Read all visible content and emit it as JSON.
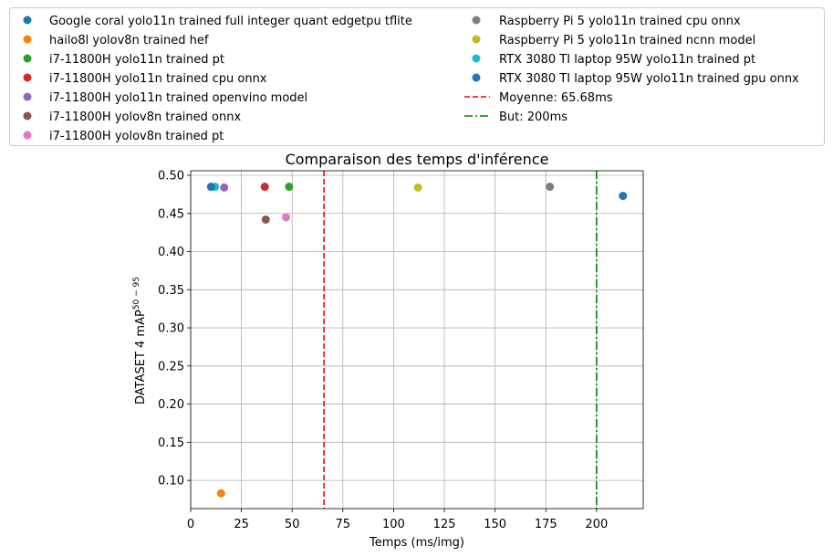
{
  "chart_data": {
    "type": "scatter",
    "title": "Comparaison des temps d'inférence",
    "xlabel": "Temps (ms/img)",
    "ylabel_main": "DATASET 4 mAP",
    "ylabel_sup": "50 − 95",
    "xlim": [
      0,
      223
    ],
    "ylim": [
      0.063,
      0.506
    ],
    "xticks": [
      0,
      25,
      50,
      75,
      100,
      125,
      150,
      175,
      200
    ],
    "yticks": [
      0.1,
      0.15,
      0.2,
      0.25,
      0.3,
      0.35,
      0.4,
      0.45,
      0.5
    ],
    "grid": true,
    "legend_position": "top",
    "series": [
      {
        "name": "Google coral yolo11n trained full integer quant edgetpu tflite",
        "color": "#1f77b4",
        "x": 213.0,
        "y": 0.473
      },
      {
        "name": "hailo8l yolov8n trained hef",
        "color": "#ff7f0e",
        "x": 15.0,
        "y": 0.083
      },
      {
        "name": "i7-11800H yolo11n trained pt",
        "color": "#2ca02c",
        "x": 48.5,
        "y": 0.485
      },
      {
        "name": "i7-11800H yolo11n trained cpu onnx",
        "color": "#d62728",
        "x": 36.5,
        "y": 0.485
      },
      {
        "name": "i7-11800H yolo11n trained openvino model",
        "color": "#9467bd",
        "x": 16.5,
        "y": 0.484
      },
      {
        "name": "i7-11800H yolov8n trained onnx",
        "color": "#8c564b",
        "x": 37.0,
        "y": 0.442
      },
      {
        "name": "i7-11800H yolov8n trained pt",
        "color": "#e377c2",
        "x": 47.0,
        "y": 0.445
      },
      {
        "name": "Raspberry Pi 5 yolo11n trained cpu onnx",
        "color": "#7f7f7f",
        "x": 177.0,
        "y": 0.485
      },
      {
        "name": "Raspberry Pi 5 yolo11n trained ncnn model",
        "color": "#bcbd22",
        "x": 112.0,
        "y": 0.484
      },
      {
        "name": "RTX 3080 TI laptop 95W yolo11n trained pt",
        "color": "#17becf",
        "x": 12.0,
        "y": 0.485
      },
      {
        "name": "RTX 3080 TI laptop 95W yolo11n trained gpu onnx",
        "color": "#1f77b4",
        "x": 10.0,
        "y": 0.485
      }
    ],
    "reference_lines": [
      {
        "label": "Moyenne: 65.68ms",
        "x": 65.68,
        "color": "#ff0000",
        "style": "dashed"
      },
      {
        "label": "But: 200ms",
        "x": 200,
        "color": "#008000",
        "style": "dashdot"
      }
    ]
  }
}
